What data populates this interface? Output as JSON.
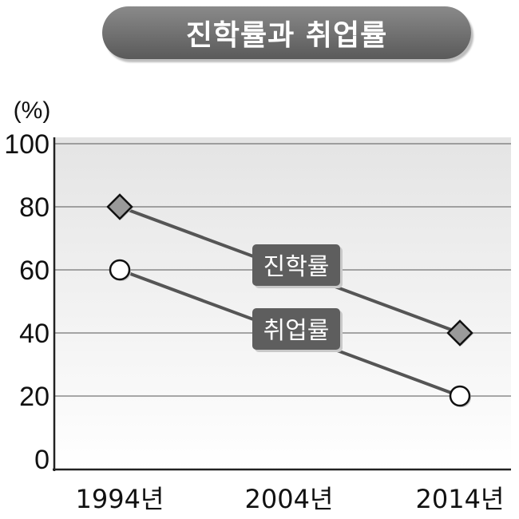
{
  "chart_data": {
    "type": "line",
    "title": "진학률과 취업률",
    "ylabel": "(%)",
    "xlabel": "",
    "categories": [
      "1994년",
      "2004년",
      "2014년"
    ],
    "ylim": [
      0,
      100
    ],
    "yticks": [
      "0",
      "20",
      "40",
      "60",
      "80",
      "100"
    ],
    "grid": true,
    "series": [
      {
        "name": "진학률",
        "values": [
          80,
          null,
          40
        ],
        "marker": "diamond",
        "color": "#555555"
      },
      {
        "name": "취업률",
        "values": [
          60,
          null,
          20
        ],
        "marker": "circle",
        "color": "#555555"
      }
    ]
  }
}
